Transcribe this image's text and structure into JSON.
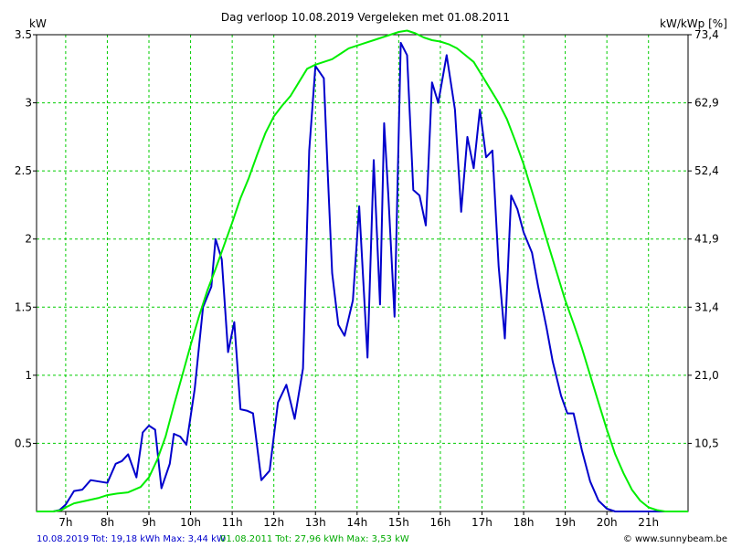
{
  "chart_data": {
    "type": "line",
    "title": "Dag  verloop 10.08.2019   Vergeleken met 01.08.2011",
    "ylabel_left": "kW",
    "ylabel_right": "kW/kWp [%]",
    "xlim": [
      6.3,
      21.95
    ],
    "ylim": [
      0,
      3.5
    ],
    "y_right_range": [
      0,
      73.4
    ],
    "x_ticks": [
      7,
      8,
      9,
      10,
      11,
      12,
      13,
      14,
      15,
      16,
      17,
      18,
      19,
      20,
      21
    ],
    "x_tick_labels": [
      "7h",
      "8h",
      "9h",
      "10h",
      "11h",
      "12h",
      "13h",
      "14h",
      "15h",
      "16h",
      "17h",
      "18h",
      "19h",
      "20h",
      "21h"
    ],
    "y_ticks": [
      0.5,
      1,
      1.5,
      2,
      2.5,
      3,
      3.5
    ],
    "y_tick_labels": [
      "0.5",
      "1",
      "1.5",
      "2",
      "2.5",
      "3",
      "3.5"
    ],
    "y_right_tick_labels": [
      "10,5",
      "21,0",
      "31,4",
      "41,9",
      "52,4",
      "62,9",
      "73,4"
    ],
    "grid": true,
    "series": [
      {
        "name": "10.08.2019",
        "color": "#0000cc",
        "summary": "10.08.2019 Tot: 19,18 kWh Max: 3,44 kW",
        "x": [
          6.3,
          6.7,
          6.85,
          7.0,
          7.2,
          7.4,
          7.6,
          7.8,
          8.0,
          8.2,
          8.35,
          8.5,
          8.7,
          8.85,
          9.0,
          9.15,
          9.3,
          9.5,
          9.6,
          9.75,
          9.9,
          10.1,
          10.3,
          10.5,
          10.6,
          10.75,
          10.9,
          11.05,
          11.2,
          11.35,
          11.5,
          11.7,
          11.9,
          12.1,
          12.3,
          12.5,
          12.7,
          12.85,
          13.0,
          13.2,
          13.3,
          13.4,
          13.55,
          13.7,
          13.9,
          14.05,
          14.25,
          14.4,
          14.55,
          14.65,
          14.75,
          14.9,
          15.05,
          15.2,
          15.35,
          15.5,
          15.65,
          15.8,
          15.95,
          16.15,
          16.35,
          16.5,
          16.65,
          16.8,
          16.95,
          17.1,
          17.25,
          17.4,
          17.55,
          17.7,
          17.85,
          18.0,
          18.2,
          18.35,
          18.55,
          18.7,
          18.9,
          19.05,
          19.2,
          19.4,
          19.6,
          19.8,
          20.0,
          20.2,
          20.4,
          20.6,
          20.8,
          21.0,
          21.2,
          21.4,
          21.6,
          21.95
        ],
        "y": [
          0,
          0,
          0.01,
          0.05,
          0.15,
          0.16,
          0.23,
          0.22,
          0.21,
          0.35,
          0.37,
          0.42,
          0.25,
          0.58,
          0.63,
          0.6,
          0.17,
          0.35,
          0.57,
          0.55,
          0.49,
          0.9,
          1.5,
          1.65,
          2.0,
          1.85,
          1.17,
          1.39,
          0.75,
          0.74,
          0.72,
          0.23,
          0.3,
          0.8,
          0.93,
          0.68,
          1.05,
          2.65,
          3.27,
          3.18,
          2.45,
          1.75,
          1.37,
          1.29,
          1.55,
          2.24,
          1.13,
          2.58,
          1.52,
          2.85,
          2.32,
          1.43,
          3.44,
          3.35,
          2.36,
          2.32,
          2.1,
          3.15,
          3.0,
          3.35,
          2.95,
          2.2,
          2.75,
          2.52,
          2.95,
          2.6,
          2.65,
          1.8,
          1.27,
          2.32,
          2.22,
          2.05,
          1.9,
          1.65,
          1.35,
          1.1,
          0.85,
          0.72,
          0.72,
          0.45,
          0.22,
          0.08,
          0.02,
          0,
          0,
          0,
          0,
          0,
          0,
          0,
          0,
          0
        ]
      },
      {
        "name": "01.08.2011",
        "color": "#00ee00",
        "summary": "01.08.2011 Tot: 27,96 kWh Max: 3,53 kW",
        "x": [
          6.3,
          6.7,
          6.9,
          7.0,
          7.2,
          7.5,
          7.8,
          8.0,
          8.2,
          8.5,
          8.8,
          9.0,
          9.2,
          9.4,
          9.6,
          9.8,
          10.0,
          10.2,
          10.4,
          10.6,
          10.8,
          11.0,
          11.2,
          11.4,
          11.6,
          11.8,
          12.0,
          12.2,
          12.4,
          12.6,
          12.8,
          13.0,
          13.2,
          13.4,
          13.6,
          13.8,
          14.0,
          14.2,
          14.4,
          14.6,
          14.8,
          15.0,
          15.2,
          15.4,
          15.6,
          15.8,
          16.0,
          16.2,
          16.4,
          16.6,
          16.8,
          17.0,
          17.2,
          17.4,
          17.6,
          17.8,
          18.0,
          18.2,
          18.4,
          18.6,
          18.8,
          19.0,
          19.2,
          19.4,
          19.6,
          19.8,
          20.0,
          20.2,
          20.4,
          20.6,
          20.8,
          21.0,
          21.2,
          21.4,
          21.6,
          21.75,
          21.95
        ],
        "y": [
          0,
          0,
          0.01,
          0.03,
          0.06,
          0.08,
          0.1,
          0.12,
          0.13,
          0.14,
          0.18,
          0.25,
          0.38,
          0.55,
          0.78,
          1.0,
          1.22,
          1.43,
          1.62,
          1.78,
          1.95,
          2.12,
          2.3,
          2.45,
          2.62,
          2.78,
          2.9,
          2.98,
          3.05,
          3.15,
          3.25,
          3.28,
          3.3,
          3.32,
          3.36,
          3.4,
          3.42,
          3.44,
          3.46,
          3.48,
          3.5,
          3.52,
          3.53,
          3.51,
          3.48,
          3.46,
          3.45,
          3.43,
          3.4,
          3.35,
          3.3,
          3.2,
          3.1,
          3.0,
          2.88,
          2.72,
          2.55,
          2.35,
          2.15,
          1.95,
          1.75,
          1.55,
          1.38,
          1.2,
          1.0,
          0.8,
          0.6,
          0.42,
          0.28,
          0.16,
          0.08,
          0.03,
          0.01,
          0,
          0,
          0,
          0
        ]
      }
    ]
  },
  "footer": {
    "legend_2019": "10.08.2019 Tot: 19,18 kWh Max: 3,44 kW",
    "legend_2011": "01.08.2011 Tot: 27,96 kWh Max: 3,53 kW",
    "copyright": "© www.sunnybeam.be"
  }
}
